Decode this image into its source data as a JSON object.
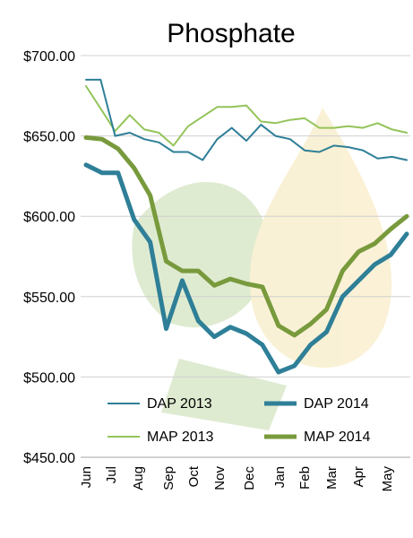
{
  "colors": {
    "dap_2013": "#2E7F97",
    "dap_2014": "#2E7F97",
    "map_2013": "#94C45A",
    "map_2014": "#789A3C",
    "gridline": "#D0D0D0",
    "watermark_green": "#B7D39A",
    "watermark_yellow": "#F3E1A4"
  },
  "chart_data": {
    "type": "line",
    "title": "Phosphate",
    "xlabel": "",
    "ylabel": "",
    "x_tick_labels": [
      "Jun",
      "Jul",
      "Aug",
      "Sep",
      "Oct",
      "Nov",
      "Dec",
      "Jan",
      "Feb",
      "Mar",
      "Apr",
      "May"
    ],
    "y_tick_labels": [
      "$700.00",
      "$650.00",
      "$600.00",
      "$550.00",
      "$500.00",
      "$450.00"
    ],
    "ylim": [
      450,
      700
    ],
    "grid": "horizontal",
    "legend_placement": "bottom",
    "series": [
      {
        "name": "DAP 2013",
        "style": "thin",
        "values": [
          [
            "Jun",
            685
          ],
          [
            "Jul",
            685
          ],
          [
            "Jul",
            650
          ],
          [
            "Aug",
            652
          ],
          [
            "Aug",
            648
          ],
          [
            "Sep",
            646
          ],
          [
            "Sep",
            640
          ],
          [
            "Oct",
            640
          ],
          [
            "Oct",
            635
          ],
          [
            "Nov",
            648
          ],
          [
            "Nov",
            655
          ],
          [
            "Dec",
            647
          ],
          [
            "Dec",
            657
          ],
          [
            "Jan",
            650
          ],
          [
            "Jan",
            648
          ],
          [
            "Feb",
            641
          ],
          [
            "Feb",
            640
          ],
          [
            "Mar",
            644
          ],
          [
            "Mar",
            643
          ],
          [
            "Apr",
            641
          ],
          [
            "Apr",
            636
          ],
          [
            "May",
            637
          ],
          [
            "May",
            635
          ]
        ]
      },
      {
        "name": "DAP 2014",
        "style": "thick",
        "values": [
          [
            "Jun",
            632
          ],
          [
            "Jul",
            627
          ],
          [
            "Aug",
            627
          ],
          [
            "Aug",
            598
          ],
          [
            "Sep",
            584
          ],
          [
            "Sep",
            530
          ],
          [
            "Oct",
            560
          ],
          [
            "Oct",
            535
          ],
          [
            "Nov",
            525
          ],
          [
            "Nov",
            531
          ],
          [
            "Dec",
            527
          ],
          [
            "Dec",
            520
          ],
          [
            "Jan",
            503
          ],
          [
            "Jan",
            507
          ],
          [
            "Feb",
            520
          ],
          [
            "Feb",
            528
          ],
          [
            "Mar",
            550
          ],
          [
            "Mar",
            560
          ],
          [
            "Apr",
            570
          ],
          [
            "Apr",
            576
          ],
          [
            "May",
            589
          ]
        ]
      },
      {
        "name": "MAP 2013",
        "style": "thin",
        "values": [
          [
            "Jun",
            681
          ],
          [
            "Jun",
            667
          ],
          [
            "Jul",
            653
          ],
          [
            "Aug",
            663
          ],
          [
            "Aug",
            654
          ],
          [
            "Sep",
            652
          ],
          [
            "Sep",
            644
          ],
          [
            "Oct",
            656
          ],
          [
            "Oct",
            662
          ],
          [
            "Nov",
            668
          ],
          [
            "Nov",
            668
          ],
          [
            "Dec",
            669
          ],
          [
            "Dec",
            659
          ],
          [
            "Jan",
            658
          ],
          [
            "Jan",
            660
          ],
          [
            "Feb",
            661
          ],
          [
            "Feb",
            655
          ],
          [
            "Mar",
            655
          ],
          [
            "Mar",
            656
          ],
          [
            "Apr",
            655
          ],
          [
            "Apr",
            658
          ],
          [
            "May",
            654
          ],
          [
            "May",
            652
          ]
        ]
      },
      {
        "name": "MAP 2014",
        "style": "thick",
        "values": [
          [
            "Jun",
            649
          ],
          [
            "Jul",
            648
          ],
          [
            "Aug",
            642
          ],
          [
            "Aug",
            630
          ],
          [
            "Sep",
            613
          ],
          [
            "Sep",
            572
          ],
          [
            "Oct",
            566
          ],
          [
            "Oct",
            566
          ],
          [
            "Nov",
            557
          ],
          [
            "Nov",
            561
          ],
          [
            "Dec",
            558
          ],
          [
            "Dec",
            556
          ],
          [
            "Jan",
            532
          ],
          [
            "Jan",
            526
          ],
          [
            "Feb",
            533
          ],
          [
            "Feb",
            542
          ],
          [
            "Mar",
            566
          ],
          [
            "Mar",
            578
          ],
          [
            "Apr",
            583
          ],
          [
            "Apr",
            592
          ],
          [
            "May",
            600
          ]
        ]
      }
    ]
  }
}
